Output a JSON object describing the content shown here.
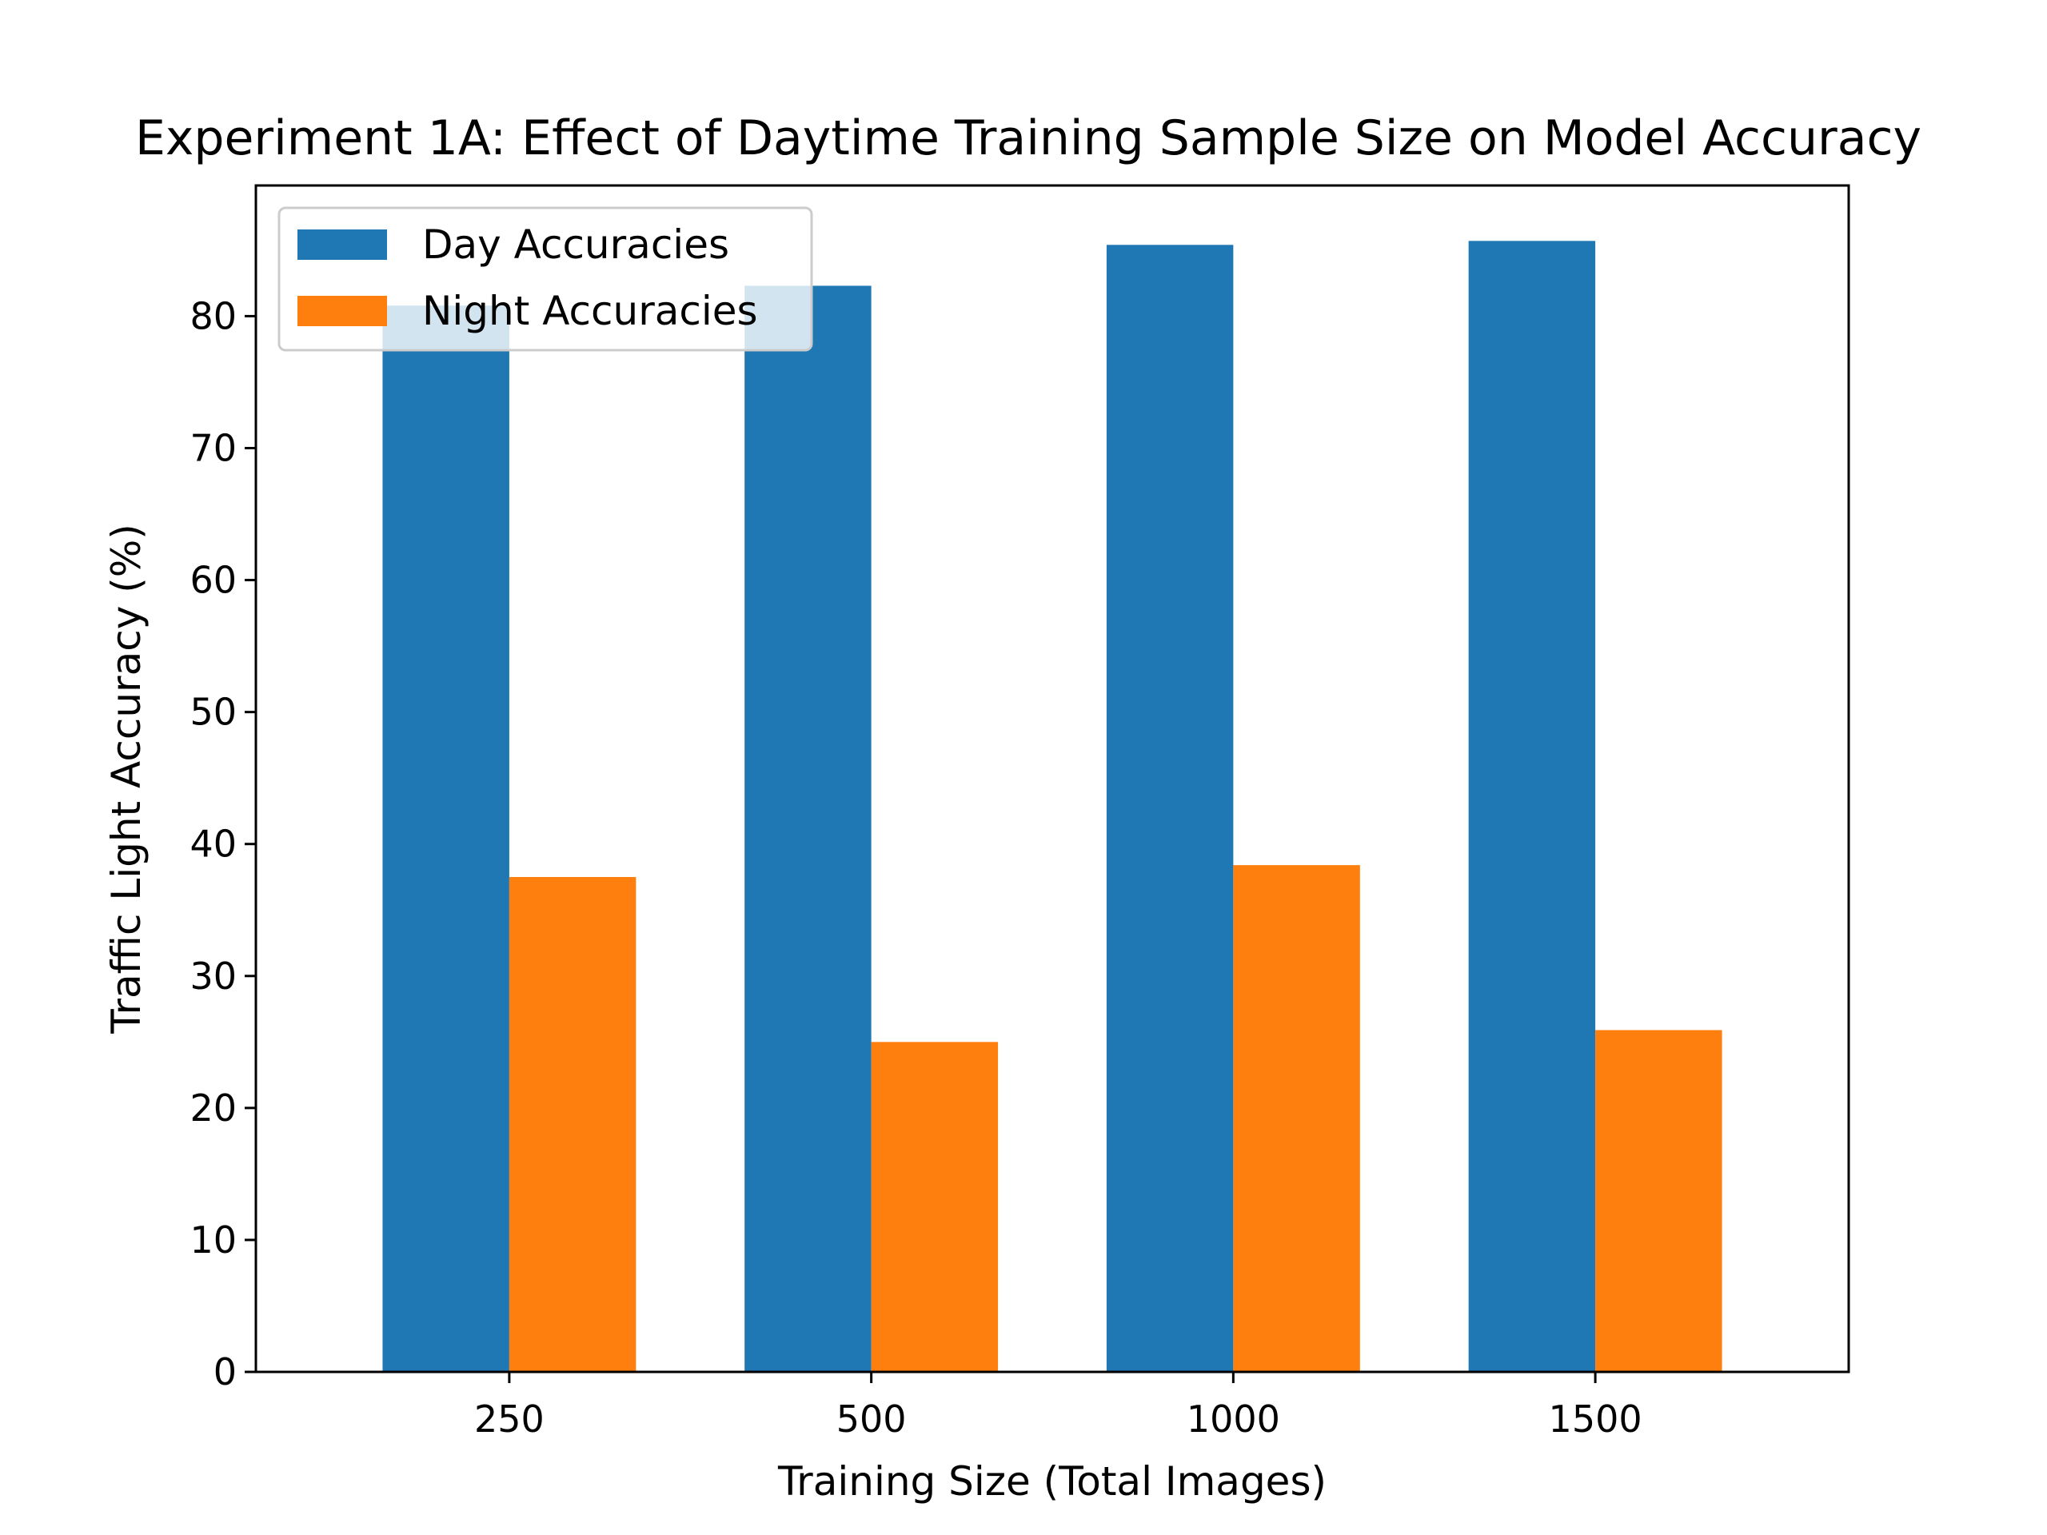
{
  "chart_data": {
    "type": "bar",
    "title": "Experiment 1A: Effect of Daytime Training Sample Size on Model Accuracy",
    "xlabel": "Training Size (Total Images)",
    "ylabel": "Traffic Light Accuracy (%)",
    "categories": [
      "250",
      "500",
      "1000",
      "1500"
    ],
    "series": [
      {
        "name": "Day Accuracies",
        "color": "#1f77b4",
        "values": [
          80.8,
          82.3,
          85.4,
          85.7
        ]
      },
      {
        "name": "Night Accuracies",
        "color": "#ff7f0e",
        "values": [
          37.5,
          25.0,
          38.4,
          25.9
        ]
      }
    ],
    "ylim": [
      0,
      89.9
    ],
    "yticks": [
      0,
      10,
      20,
      30,
      40,
      50,
      60,
      70,
      80
    ],
    "grid": false,
    "legend_position": "top-left"
  }
}
